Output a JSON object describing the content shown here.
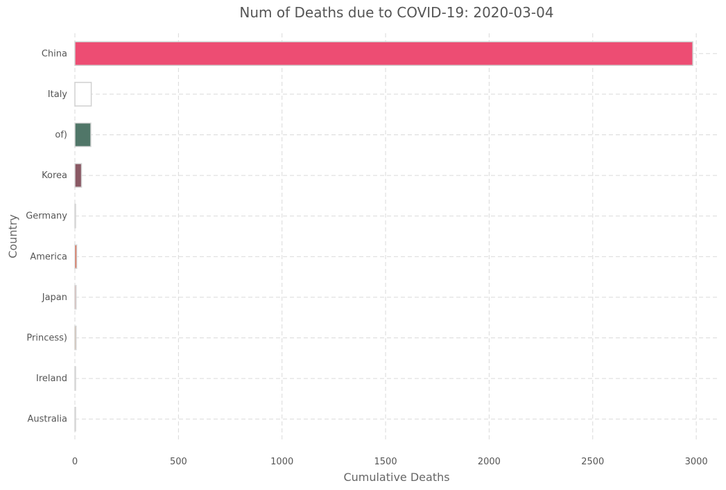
{
  "chart_data": {
    "type": "bar",
    "orientation": "horizontal",
    "title": "Num of Deaths due to COVID-19: 2020-03-04",
    "xlabel": "Cumulative Deaths",
    "ylabel": "Country",
    "categories": [
      "China",
      "Italy",
      "of)",
      "Korea",
      "Germany",
      "America",
      "Japan",
      "Princess)",
      "Ireland",
      "Australia"
    ],
    "values": [
      2983,
      79,
      77,
      32,
      3,
      9,
      6,
      6,
      1,
      2
    ],
    "bar_colors": [
      "#ed4d73",
      "#ffffff",
      "#507668",
      "#8a5964",
      "#eb7a70",
      "#d95a3d",
      "#d97b6c",
      "#c58f5f",
      "#d8b7a4",
      "#b9d9d8"
    ],
    "bar_edge_colors": [
      "#cfcfcf",
      "#d0d0d0",
      "#d6d6d6",
      "#d6d6d6",
      "#d6d6d6",
      "#d6d6d6",
      "#d6d6d6",
      "#d6d6d6",
      "#d6d6d6",
      "#d6d6d6"
    ],
    "xlim": [
      0,
      3100
    ],
    "xticks": [
      0,
      500,
      1000,
      1500,
      2000,
      2500,
      3000
    ],
    "grid": true,
    "legend": "none"
  }
}
